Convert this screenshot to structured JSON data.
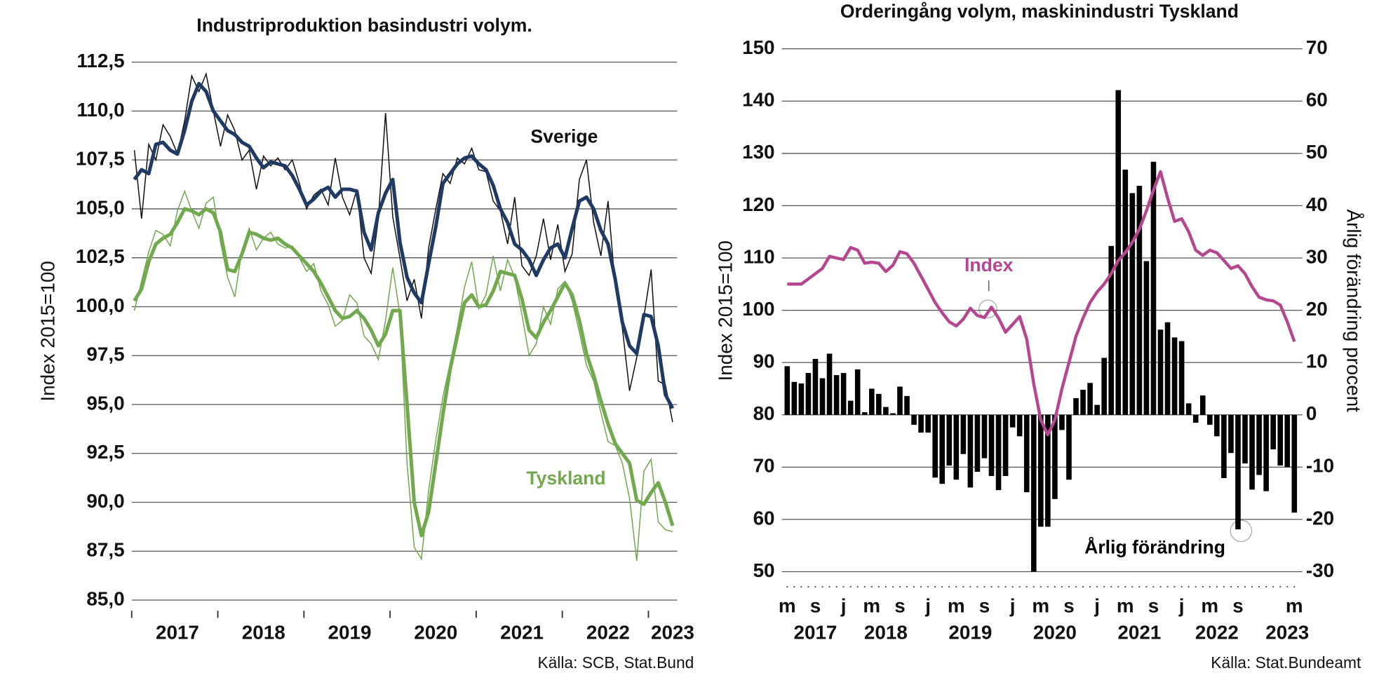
{
  "chart_data": [
    {
      "type": "line",
      "title": "Industriproduktion basindustri volym.",
      "y_label": "Index 2015=100",
      "source": "Källa: SCB, Stat.Bund",
      "categories": [
        null,
        null,
        null,
        null,
        null,
        null,
        "2017",
        null,
        null,
        null,
        null,
        null,
        null,
        null,
        null,
        null,
        null,
        null,
        "2018",
        null,
        null,
        null,
        null,
        null,
        null,
        null,
        null,
        null,
        null,
        null,
        "2019",
        null,
        null,
        null,
        null,
        null,
        null,
        null,
        null,
        null,
        null,
        null,
        "2020",
        null,
        null,
        null,
        null,
        null,
        null,
        null,
        null,
        null,
        null,
        null,
        "2021",
        null,
        null,
        null,
        null,
        null,
        null,
        null,
        null,
        null,
        null,
        null,
        "2022",
        null,
        null,
        null,
        null,
        null,
        null,
        null,
        null,
        "2023"
      ],
      "ylim": [
        85,
        112.5
      ],
      "yticks": [
        {
          "value": 85,
          "label": "85,0"
        },
        {
          "value": 87.5,
          "label": "87,5"
        },
        {
          "value": 90,
          "label": "90,0"
        },
        {
          "value": 92.5,
          "label": "92,5"
        },
        {
          "value": 95,
          "label": "95,0"
        },
        {
          "value": 97.5,
          "label": "97,5"
        },
        {
          "value": 100,
          "label": "100,0"
        },
        {
          "value": 102.5,
          "label": "102,5"
        },
        {
          "value": 105,
          "label": "105,0"
        },
        {
          "value": 107.5,
          "label": "107,5"
        },
        {
          "value": 110,
          "label": "110,0"
        },
        {
          "value": 112.5,
          "label": "112,5"
        }
      ],
      "grid": true,
      "series": [
        {
          "name": "Sverige",
          "color": "#1f3a63",
          "values": [
            106.5,
            107,
            106.8,
            108.3,
            108.4,
            108,
            107.8,
            109,
            110.5,
            111.4,
            111,
            110,
            109.5,
            109,
            108.8,
            108.4,
            108.2,
            107.6,
            107.1,
            107.4,
            107.3,
            107.2,
            106.7,
            106,
            105.2,
            105.5,
            105.9,
            106.1,
            105.6,
            106,
            106,
            105.9,
            103.8,
            102.9,
            104.8,
            105.8,
            106.5,
            103.3,
            101.5,
            100.7,
            100.2,
            102.2,
            104.1,
            106.3,
            106.8,
            107.3,
            107.6,
            107.7,
            107.3,
            107,
            106.2,
            105,
            104.3,
            103.2,
            102.9,
            102.4,
            101.6,
            102.4,
            103,
            103.2,
            102.5,
            104,
            105.4,
            105.6,
            105,
            103.9,
            103.2,
            101.4,
            99.2,
            98,
            97.6,
            99.6,
            99.5,
            98,
            95.5,
            94.8
          ],
          "raw_values": [
            108,
            104.5,
            108.3,
            107.5,
            109.3,
            108.7,
            107.8,
            109.5,
            111.8,
            111,
            111.9,
            110,
            108.2,
            109.8,
            109,
            107.5,
            108,
            106,
            107.7,
            107.2,
            107.6,
            107,
            107.5,
            106.3,
            105,
            105.7,
            106,
            105.2,
            107.6,
            105.6,
            104.7,
            106,
            102.5,
            101.7,
            104.5,
            109.9,
            104.6,
            102.5,
            100.3,
            101.4,
            99.4,
            103,
            105,
            106.8,
            106.3,
            107.6,
            107.3,
            108.1,
            107,
            106.9,
            105.4,
            104.9,
            103.2,
            105.6,
            102.1,
            101.6,
            102.6,
            104.5,
            102.4,
            104.2,
            101.8,
            102.7,
            106.5,
            107.5,
            104.3,
            102.6,
            105.4,
            101,
            98.9,
            95.7,
            97.4,
            99.5,
            101.9,
            96.2,
            96,
            94.1
          ]
        },
        {
          "name": "Tyskland",
          "color": "#72a94f",
          "values": [
            100.3,
            100.9,
            102.3,
            103.2,
            103.5,
            103.7,
            104.3,
            105,
            104.9,
            104.7,
            105,
            104.8,
            103.8,
            101.9,
            101.8,
            102.7,
            103.8,
            103.7,
            103.5,
            103.4,
            103.5,
            103.2,
            103,
            102.6,
            102.2,
            101.8,
            101.2,
            100.5,
            99.8,
            99.4,
            99.5,
            99.8,
            99.4,
            98.8,
            98,
            98.6,
            99.8,
            99.8,
            95,
            90,
            88.3,
            89.5,
            92,
            94.5,
            96.8,
            98.5,
            100.2,
            100.6,
            100,
            100.1,
            100.8,
            101.8,
            101.7,
            101.6,
            100.4,
            98.8,
            98.4,
            99.2,
            99.8,
            100.5,
            101.2,
            100.6,
            99.3,
            97.6,
            96.5,
            95.2,
            94,
            93,
            92.5,
            92,
            90.1,
            89.9,
            90.5,
            91,
            90,
            88.8
          ],
          "raw_values": [
            99.8,
            101.3,
            102.8,
            103.9,
            103.7,
            103.1,
            104.9,
            105.9,
            104.9,
            104,
            105.3,
            105.6,
            103.3,
            101.5,
            100.5,
            102.9,
            104,
            102.9,
            103.5,
            103.8,
            103.2,
            103,
            103.1,
            102.5,
            101.8,
            102.2,
            100.8,
            100.1,
            99,
            99.3,
            100.6,
            100.2,
            98.5,
            98.1,
            97.3,
            99.3,
            102,
            99.6,
            92,
            87.7,
            87.1,
            90.6,
            93.2,
            95.4,
            97.1,
            98.9,
            101,
            102.3,
            99.9,
            100.6,
            102.6,
            100.8,
            102.4,
            101.5,
            99.6,
            97.5,
            98.1,
            100,
            99.1,
            100.9,
            101.3,
            100.3,
            98.7,
            97,
            96.2,
            94.6,
            93.1,
            92.9,
            92,
            90.2,
            87,
            91.6,
            92.2,
            89,
            88.6,
            88.5
          ]
        }
      ]
    },
    {
      "type": "combo",
      "title": "Orderingång volym, maskinindustri Tyskland",
      "y_label": "Index 2015=100",
      "y2_label": "Årlig förändring procent",
      "source": "Källa: Stat.Bundeamt",
      "categories": [
        "m",
        null,
        null,
        null,
        "s",
        null,
        null,
        null,
        "j",
        null,
        null,
        null,
        "m",
        null,
        null,
        null,
        "s",
        null,
        null,
        null,
        "j",
        null,
        null,
        null,
        "m",
        null,
        null,
        null,
        "s",
        null,
        null,
        null,
        "j",
        null,
        null,
        null,
        "m",
        null,
        null,
        null,
        "s",
        null,
        null,
        null,
        "j",
        null,
        null,
        null,
        "m",
        null,
        null,
        null,
        "s",
        null,
        null,
        null,
        "j",
        null,
        null,
        null,
        "m",
        null,
        null,
        null,
        "s",
        null,
        null,
        null,
        null,
        null,
        null,
        null,
        "m"
      ],
      "years": [
        null,
        null,
        null,
        null,
        "2017",
        null,
        null,
        null,
        null,
        null,
        null,
        null,
        null,
        null,
        "2018",
        null,
        null,
        null,
        null,
        null,
        null,
        null,
        null,
        null,
        null,
        null,
        "2019",
        null,
        null,
        null,
        null,
        null,
        null,
        null,
        null,
        null,
        null,
        null,
        "2020",
        null,
        null,
        null,
        null,
        null,
        null,
        null,
        null,
        null,
        null,
        null,
        "2021",
        null,
        null,
        null,
        null,
        null,
        null,
        null,
        null,
        null,
        null,
        "2022",
        null,
        null,
        null,
        null,
        null,
        null,
        null,
        null,
        null,
        "2023",
        null
      ],
      "ylim": [
        50,
        150
      ],
      "yticks": [
        50,
        60,
        70,
        80,
        90,
        100,
        110,
        120,
        130,
        140,
        150
      ],
      "y2lim": [
        -30,
        70
      ],
      "y2ticks": [
        -30,
        -20,
        -10,
        0,
        10,
        20,
        30,
        40,
        50,
        60,
        70
      ],
      "grid": true,
      "series": [
        {
          "name": "Index",
          "color": "#b5468f",
          "values": [
            105,
            105,
            105,
            106,
            107,
            108,
            110.3,
            110,
            109.7,
            112,
            111.5,
            109,
            109.2,
            109,
            107.4,
            108.6,
            111.2,
            110.8,
            109,
            106.5,
            104,
            101.5,
            99.5,
            97.8,
            97,
            98.3,
            100.4,
            99,
            98.6,
            100.6,
            98.5,
            95.8,
            97.3,
            98.8,
            94.5,
            86,
            79,
            76.2,
            79,
            85,
            90,
            95,
            98.5,
            101.5,
            103.5,
            105,
            107,
            109.5,
            111,
            113,
            115.5,
            119,
            123,
            126.5,
            121.5,
            117,
            117.5,
            115,
            111.5,
            110.5,
            111.5,
            111,
            109.5,
            108,
            108.5,
            107,
            104.5,
            102.5,
            102,
            101.8,
            101,
            97.8,
            94
          ]
        },
        {
          "name": "Årlig förändring",
          "color": "#000000",
          "axis": "y2",
          "values": [
            9.3,
            6.3,
            6,
            8,
            10.7,
            7,
            11.7,
            7.6,
            8,
            2.7,
            8.7,
            0.5,
            5,
            4,
            1.5,
            0.3,
            5.4,
            3.6,
            -1.9,
            -3.4,
            -3.4,
            -12,
            -13.2,
            -9.7,
            -12.4,
            -7.5,
            -13.9,
            -10.9,
            -8.3,
            -11.7,
            -14.4,
            -11.7,
            -2.4,
            -4.1,
            -14.8,
            -30,
            -21.4,
            -21.4,
            -16.1,
            -2.9,
            -12.4,
            3.2,
            4.8,
            6.1,
            1.9,
            10.9,
            32.3,
            62.1,
            46.9,
            42.4,
            43.8,
            29.4,
            48.4,
            16.3,
            17.7,
            14.8,
            14.1,
            2.2,
            -1.5,
            3.7,
            -1.9,
            -4.1,
            -12.1,
            -7.3,
            -21.9,
            -9.3,
            -14.3,
            -11.5,
            -14.6,
            -6.6,
            -9.7,
            -10,
            -18.7
          ]
        }
      ]
    }
  ]
}
